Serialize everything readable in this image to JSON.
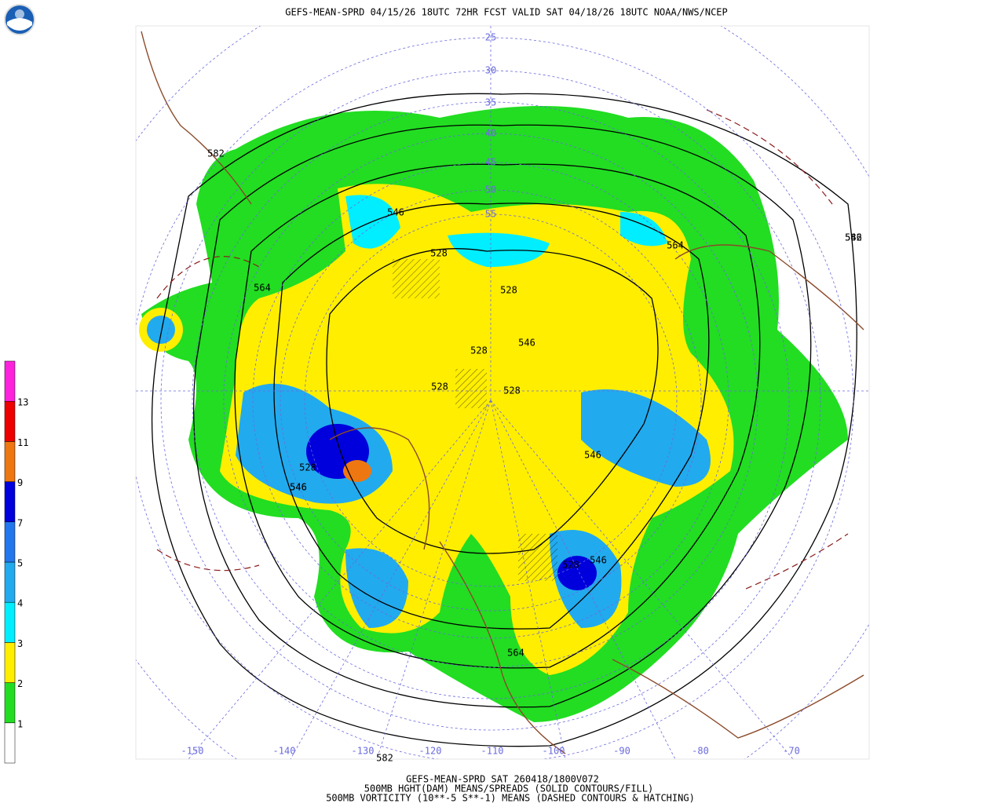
{
  "header": {
    "title": "GEFS-MEAN-SPRD 04/15/26 18UTC 72HR FCST VALID SAT 04/18/26 18UTC NOAA/NWS/NCEP"
  },
  "colorbar": {
    "colors": [
      "#ffffff",
      "#22dd22",
      "#ffee00",
      "#00eeff",
      "#22aaee",
      "#2277ee",
      "#0000dd",
      "#ee7711",
      "#ee0000",
      "#ff22dd"
    ],
    "labels": [
      "1",
      "2",
      "3",
      "4",
      "5",
      "7",
      "9",
      "11",
      "13"
    ]
  },
  "map": {
    "contour_labels": [
      "582",
      "546",
      "528",
      "564",
      "564",
      "546",
      "528",
      "528",
      "528",
      "546",
      "528",
      "528",
      "546",
      "528",
      "546",
      "546",
      "546",
      "564",
      "582",
      "582"
    ],
    "longitude_labels": [
      "-150",
      "-140",
      "-130",
      "-120",
      "-110",
      "-100",
      "-90",
      "-80",
      "-70"
    ],
    "latitude_labels": [
      "25",
      "30",
      "35",
      "40",
      "45",
      "50",
      "55"
    ]
  },
  "footer": {
    "lines": [
      "GEFS-MEAN-SPRD SAT 260418/1800V072",
      "500MB HGHT(DAM) MEANS/SPREADS (SOLID CONTOURS/FILL)",
      "500MB VORTICITY (10**-5 S**-1) MEANS (DASHED CONTOURS & HATCHING)"
    ]
  }
}
